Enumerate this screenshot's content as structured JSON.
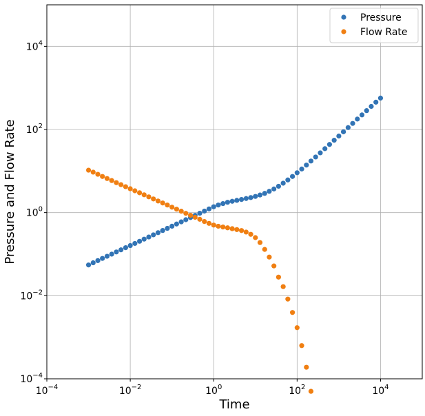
{
  "chart_data": {
    "type": "scatter",
    "title": "",
    "xlabel": "Time",
    "ylabel": "Pressure and Flow Rate",
    "x_scale": "log",
    "y_scale": "log",
    "xlim": [
      0.0001,
      100000
    ],
    "ylim": [
      0.0001,
      100000
    ],
    "grid": true,
    "legend_position": "top-right",
    "x_ticks": [
      {
        "base": "10",
        "exp": "−4",
        "value": 0.0001
      },
      {
        "base": "10",
        "exp": "−2",
        "value": 0.01
      },
      {
        "base": "10",
        "exp": "0",
        "value": 1
      },
      {
        "base": "10",
        "exp": "2",
        "value": 100
      },
      {
        "base": "10",
        "exp": "4",
        "value": 10000
      }
    ],
    "y_ticks": [
      {
        "base": "10",
        "exp": "−4",
        "value": 0.0001
      },
      {
        "base": "10",
        "exp": "−2",
        "value": 0.01
      },
      {
        "base": "10",
        "exp": "0",
        "value": 1
      },
      {
        "base": "10",
        "exp": "2",
        "value": 100
      },
      {
        "base": "10",
        "exp": "4",
        "value": 10000
      }
    ],
    "series": [
      {
        "name": "Pressure",
        "color": "#3274b5",
        "x": [
          0.001,
          0.00129,
          0.00167,
          0.00215,
          0.00278,
          0.00359,
          0.00464,
          0.00599,
          0.00774,
          0.01,
          0.0129,
          0.0167,
          0.0215,
          0.0278,
          0.0359,
          0.0464,
          0.0599,
          0.0774,
          0.1,
          0.129,
          0.167,
          0.215,
          0.278,
          0.359,
          0.464,
          0.599,
          0.774,
          1,
          1.29,
          1.67,
          2.15,
          2.78,
          3.59,
          4.64,
          5.99,
          7.74,
          10,
          12.9,
          16.7,
          21.5,
          27.8,
          35.9,
          46.4,
          59.9,
          77.4,
          100,
          129,
          167,
          215,
          278,
          359,
          464,
          599,
          774,
          1000,
          1290,
          1670,
          2150,
          2780,
          3590,
          4640,
          5990,
          7740,
          10000
        ],
        "y": [
          0.055,
          0.062,
          0.07,
          0.079,
          0.089,
          0.1,
          0.113,
          0.127,
          0.143,
          0.161,
          0.181,
          0.204,
          0.23,
          0.259,
          0.292,
          0.329,
          0.371,
          0.418,
          0.471,
          0.531,
          0.598,
          0.674,
          0.76,
          0.856,
          0.965,
          1.087,
          1.225,
          1.38,
          1.52,
          1.65,
          1.77,
          1.87,
          1.97,
          2.07,
          2.18,
          2.3,
          2.45,
          2.65,
          2.9,
          3.25,
          3.7,
          4.3,
          5.1,
          6.1,
          7.4,
          9.1,
          11.2,
          13.9,
          17.4,
          21.8,
          27.4,
          34.5,
          43.6,
          55.1,
          69.6,
          88,
          111,
          140,
          178,
          224,
          284,
          359,
          454,
          570
        ]
      },
      {
        "name": "Flow Rate",
        "color": "#f07f12",
        "x": [
          0.001,
          0.00129,
          0.00167,
          0.00215,
          0.00278,
          0.00359,
          0.00464,
          0.00599,
          0.00774,
          0.01,
          0.0129,
          0.0167,
          0.0215,
          0.0278,
          0.0359,
          0.0464,
          0.0599,
          0.0774,
          0.1,
          0.129,
          0.167,
          0.215,
          0.278,
          0.359,
          0.464,
          0.599,
          0.774,
          1,
          1.29,
          1.67,
          2.15,
          2.78,
          3.59,
          4.64,
          5.99,
          7.74,
          10,
          12.9,
          16.7,
          21.5,
          27.8,
          35.9,
          46.4,
          59.9,
          77.4,
          100,
          129,
          167,
          215
        ],
        "y": [
          10.5,
          9.4,
          8.35,
          7.4,
          6.6,
          5.9,
          5.25,
          4.7,
          4.2,
          3.75,
          3.35,
          3.0,
          2.68,
          2.39,
          2.13,
          1.9,
          1.7,
          1.52,
          1.35,
          1.21,
          1.08,
          0.96,
          0.86,
          0.77,
          0.69,
          0.61,
          0.55,
          0.5,
          0.47,
          0.45,
          0.43,
          0.41,
          0.39,
          0.37,
          0.34,
          0.3,
          0.25,
          0.19,
          0.13,
          0.085,
          0.052,
          0.028,
          0.0165,
          0.0083,
          0.00395,
          0.0017,
          0.00063,
          0.00019,
          5e-05
        ]
      }
    ]
  }
}
